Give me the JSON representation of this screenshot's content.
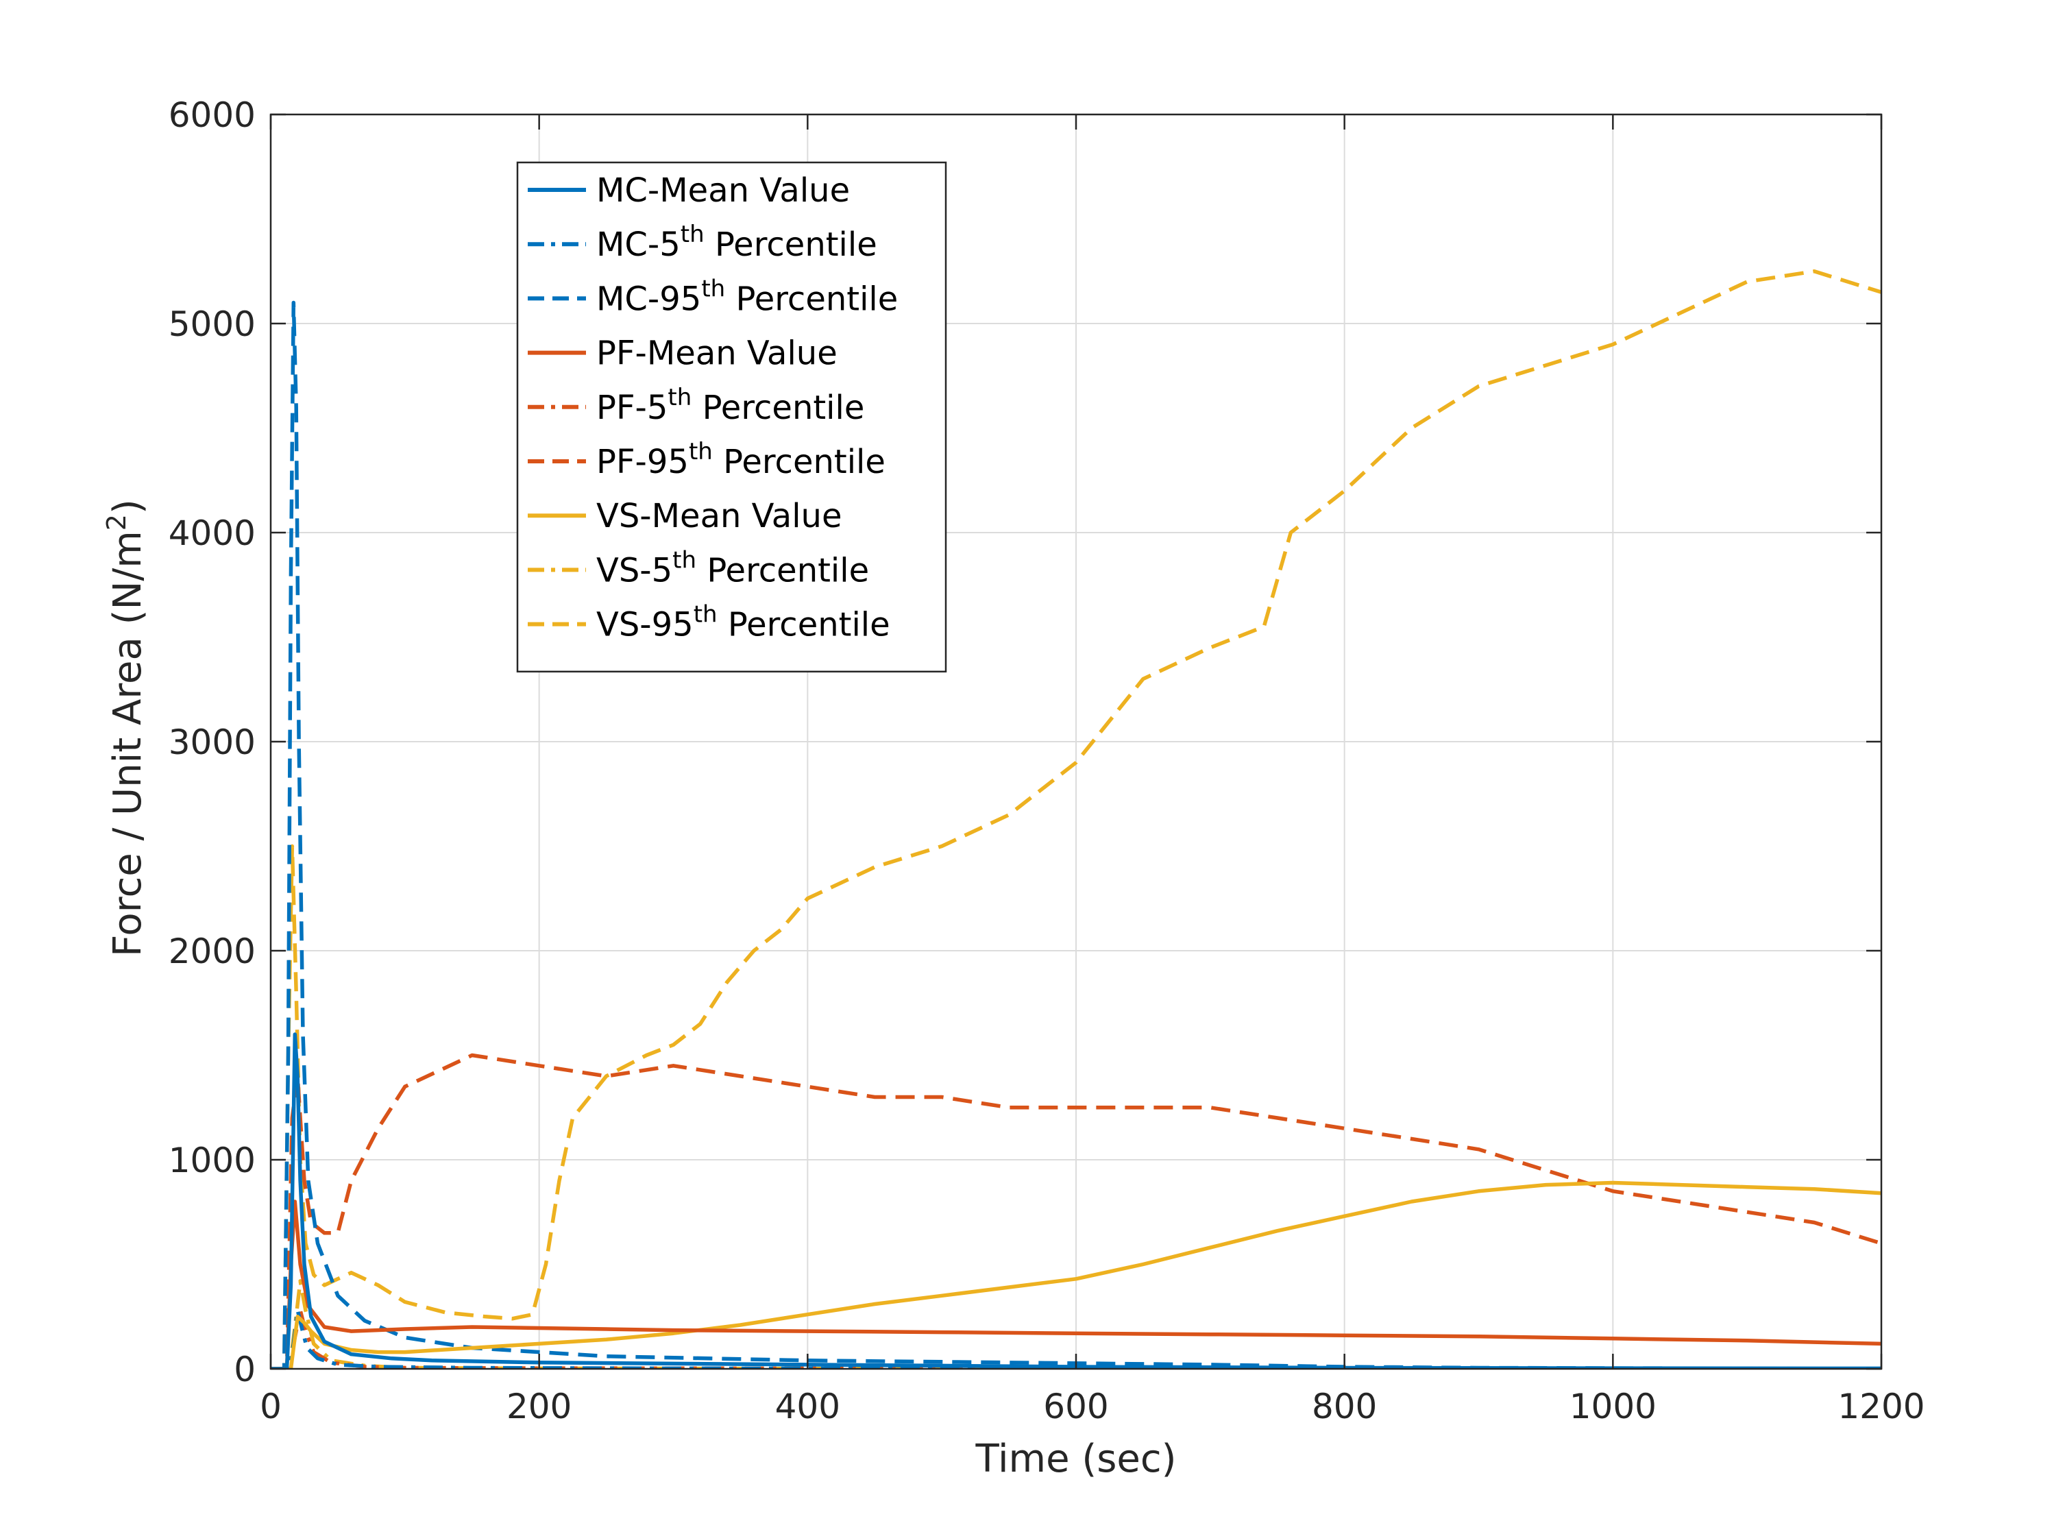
{
  "chart_data": {
    "type": "line",
    "xlabel": "Time (sec)",
    "ylabel": {
      "main": "Force / Unit Area (N/m",
      "sup": "2",
      "end": ")"
    },
    "xlim": [
      0,
      1200
    ],
    "ylim": [
      0,
      6000
    ],
    "xticks": [
      "0",
      "200",
      "400",
      "600",
      "800",
      "1000",
      "1200"
    ],
    "yticks": [
      "0",
      "1000",
      "2000",
      "3000",
      "4000",
      "5000",
      "6000"
    ],
    "grid": true,
    "legend_position": "top-left",
    "series": [
      {
        "name": "MC-Mean Value",
        "legend_parts": [
          "MC-Mean Value"
        ],
        "color": "#0072BD",
        "dash": "solid",
        "x": [
          0,
          12,
          15,
          18,
          20,
          22,
          25,
          30,
          40,
          60,
          90,
          120,
          200,
          300,
          400,
          500,
          600,
          800,
          1000,
          1200
        ],
        "y": [
          0,
          0,
          400,
          1600,
          1400,
          900,
          500,
          250,
          130,
          70,
          50,
          40,
          30,
          25,
          20,
          15,
          10,
          5,
          3,
          2
        ]
      },
      {
        "name": "MC-5th Percentile",
        "legend_parts": [
          "MC-5",
          "th",
          " Percentile"
        ],
        "color": "#0072BD",
        "dash": "dashdot",
        "x": [
          0,
          14,
          17,
          20,
          23,
          27,
          35,
          50,
          80,
          150,
          300,
          600,
          900,
          1200
        ],
        "y": [
          0,
          0,
          120,
          280,
          200,
          100,
          50,
          20,
          10,
          5,
          2,
          1,
          0,
          0
        ]
      },
      {
        "name": "MC-95th Percentile",
        "legend_parts": [
          "MC-95",
          "th",
          " Percentile"
        ],
        "color": "#0072BD",
        "dash": "dashed",
        "x": [
          0,
          10,
          13,
          15,
          17,
          19,
          21,
          24,
          28,
          35,
          50,
          70,
          100,
          150,
          250,
          400,
          550,
          700,
          800,
          900,
          1200
        ],
        "y": [
          0,
          0,
          1500,
          3800,
          5100,
          4600,
          3000,
          1600,
          900,
          600,
          350,
          230,
          150,
          100,
          60,
          40,
          30,
          20,
          10,
          5,
          0
        ]
      },
      {
        "name": "PF-Mean Value",
        "legend_parts": [
          "PF-Mean Value"
        ],
        "color": "#D95319",
        "dash": "solid",
        "x": [
          0,
          12,
          15,
          18,
          22,
          28,
          40,
          60,
          100,
          150,
          200,
          250,
          300,
          400,
          500,
          600,
          700,
          800,
          900,
          1000,
          1100,
          1200
        ],
        "y": [
          0,
          0,
          500,
          800,
          500,
          300,
          200,
          180,
          190,
          200,
          195,
          190,
          185,
          180,
          175,
          170,
          165,
          160,
          155,
          145,
          135,
          120
        ]
      },
      {
        "name": "PF-5th Percentile",
        "legend_parts": [
          "PF-5",
          "th",
          " Percentile"
        ],
        "color": "#D95319",
        "dash": "dashdot",
        "x": [
          0,
          14,
          18,
          22,
          26,
          32,
          45,
          70,
          100,
          200,
          400,
          800,
          1200
        ],
        "y": [
          0,
          0,
          150,
          280,
          180,
          80,
          30,
          10,
          5,
          3,
          2,
          1,
          0
        ]
      },
      {
        "name": "PF-95th Percentile",
        "legend_parts": [
          "PF-95",
          "th",
          " Percentile"
        ],
        "color": "#D95319",
        "dash": "dashed",
        "x": [
          0,
          12,
          16,
          20,
          25,
          30,
          40,
          50,
          60,
          80,
          100,
          150,
          200,
          250,
          300,
          350,
          400,
          450,
          500,
          550,
          600,
          650,
          700,
          750,
          800,
          850,
          900,
          950,
          1000,
          1050,
          1100,
          1150,
          1200
        ],
        "y": [
          0,
          0,
          1200,
          1400,
          900,
          700,
          650,
          650,
          900,
          1150,
          1350,
          1500,
          1450,
          1400,
          1450,
          1400,
          1350,
          1300,
          1300,
          1250,
          1250,
          1250,
          1250,
          1200,
          1150,
          1100,
          1050,
          950,
          850,
          800,
          750,
          700,
          600
        ]
      },
      {
        "name": "VS-Mean Value",
        "legend_parts": [
          "VS-Mean Value"
        ],
        "color": "#EDB120",
        "dash": "solid",
        "x": [
          0,
          15,
          20,
          25,
          30,
          40,
          60,
          80,
          100,
          150,
          200,
          250,
          300,
          350,
          400,
          450,
          500,
          550,
          600,
          650,
          700,
          750,
          800,
          850,
          900,
          950,
          1000,
          1050,
          1100,
          1150,
          1200
        ],
        "y": [
          0,
          0,
          250,
          220,
          180,
          120,
          90,
          80,
          80,
          100,
          120,
          140,
          170,
          210,
          260,
          310,
          350,
          390,
          430,
          500,
          580,
          660,
          730,
          800,
          850,
          880,
          890,
          880,
          870,
          860,
          840
        ]
      },
      {
        "name": "VS-5th Percentile",
        "legend_parts": [
          "VS-5",
          "th",
          " Percentile"
        ],
        "color": "#EDB120",
        "dash": "dashdot",
        "x": [
          0,
          14,
          18,
          22,
          26,
          32,
          45,
          70,
          100,
          200,
          400,
          800,
          1200
        ],
        "y": [
          0,
          0,
          200,
          420,
          280,
          120,
          40,
          15,
          5,
          2,
          1,
          0,
          0
        ]
      },
      {
        "name": "VS-95th Percentile",
        "legend_parts": [
          "VS-95",
          "th",
          " Percentile"
        ],
        "color": "#EDB120",
        "dash": "dashed",
        "x": [
          0,
          10,
          13,
          16,
          19,
          22,
          26,
          32,
          40,
          50,
          60,
          80,
          100,
          130,
          160,
          180,
          195,
          205,
          215,
          225,
          250,
          280,
          300,
          320,
          340,
          360,
          380,
          400,
          450,
          500,
          550,
          600,
          650,
          700,
          740,
          760,
          800,
          850,
          900,
          950,
          1000,
          1050,
          1100,
          1150,
          1200
        ],
        "y": [
          0,
          0,
          1500,
          2500,
          1800,
          1000,
          600,
          450,
          400,
          430,
          460,
          400,
          320,
          270,
          250,
          240,
          260,
          500,
          900,
          1200,
          1400,
          1500,
          1550,
          1650,
          1850,
          2000,
          2100,
          2250,
          2400,
          2500,
          2650,
          2900,
          3300,
          3450,
          3550,
          4000,
          4200,
          4500,
          4700,
          4800,
          4900,
          5050,
          5200,
          5250,
          5150
        ]
      }
    ]
  }
}
